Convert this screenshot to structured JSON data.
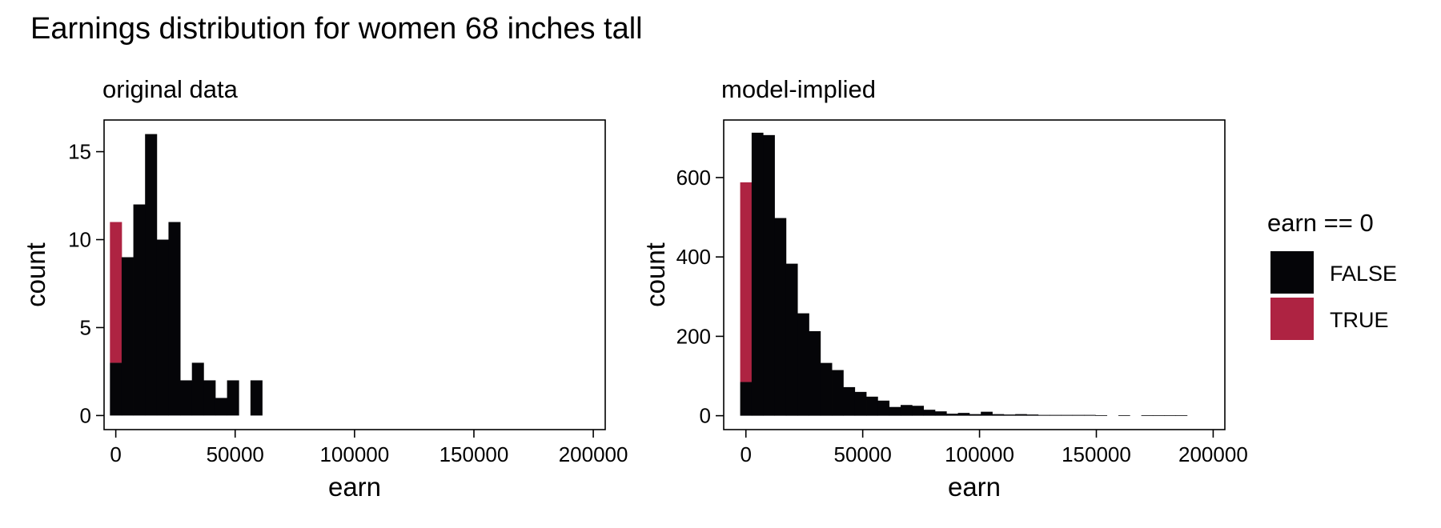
{
  "title": "Earnings distribution for women 68 inches tall",
  "colors": {
    "false": "#050508",
    "true": "#AE2342",
    "frame": "#000000"
  },
  "legend": {
    "title": "earn == 0",
    "placement": "right",
    "items": [
      {
        "label": "FALSE",
        "color": "#050508"
      },
      {
        "label": "TRUE",
        "color": "#AE2342"
      }
    ]
  },
  "chart_data": [
    {
      "type": "bar",
      "subtitle": "original data",
      "xlabel": "earn",
      "ylabel": "count",
      "xlim": [
        -4905,
        205000
      ],
      "ylim": [
        -0.8,
        16.8
      ],
      "xticks": [
        0,
        50000,
        100000,
        150000,
        200000
      ],
      "xtick_labels": [
        "0",
        "50000",
        "100000",
        "150000",
        "200000"
      ],
      "yticks": [
        0,
        5,
        10,
        15
      ],
      "ytick_labels": [
        "0",
        "5",
        "10",
        "15"
      ],
      "grid": false,
      "bin_width": 4905,
      "bin_start": -2452,
      "series": [
        {
          "name": "FALSE",
          "values": [
            3,
            9,
            12,
            16,
            10,
            11,
            2,
            3,
            2,
            1,
            2,
            0,
            2
          ]
        },
        {
          "name": "TRUE",
          "values": [
            8,
            0,
            0,
            0,
            0,
            0,
            0,
            0,
            0,
            0,
            0,
            0,
            0
          ]
        }
      ]
    },
    {
      "type": "bar",
      "subtitle": "model-implied",
      "xlabel": "earn",
      "ylabel": "count",
      "xlim": [
        -9500,
        205000
      ],
      "ylim": [
        -35,
        745
      ],
      "xticks": [
        0,
        50000,
        100000,
        150000,
        200000
      ],
      "xtick_labels": [
        "0",
        "50000",
        "100000",
        "150000",
        "200000"
      ],
      "yticks": [
        0,
        200,
        400,
        600
      ],
      "ytick_labels": [
        "0",
        "200",
        "400",
        "600"
      ],
      "grid": false,
      "bin_width": 4905,
      "bin_start": -2452,
      "series": [
        {
          "name": "FALSE",
          "values": [
            85,
            713,
            707,
            498,
            383,
            258,
            213,
            133,
            115,
            72,
            60,
            48,
            38,
            22,
            27,
            25,
            15,
            11,
            5,
            7,
            4,
            10,
            4,
            3,
            4,
            3,
            2,
            2,
            2,
            2,
            2,
            1,
            0,
            1,
            0,
            1,
            1,
            1,
            1
          ]
        },
        {
          "name": "TRUE",
          "values": [
            503,
            0,
            0,
            0,
            0,
            0,
            0,
            0,
            0,
            0,
            0,
            0,
            0,
            0,
            0,
            0,
            0,
            0,
            0,
            0,
            0,
            0,
            0,
            0,
            0,
            0,
            0,
            0,
            0,
            0,
            0,
            0,
            0,
            0,
            0,
            0,
            0,
            0,
            0
          ]
        }
      ]
    }
  ]
}
